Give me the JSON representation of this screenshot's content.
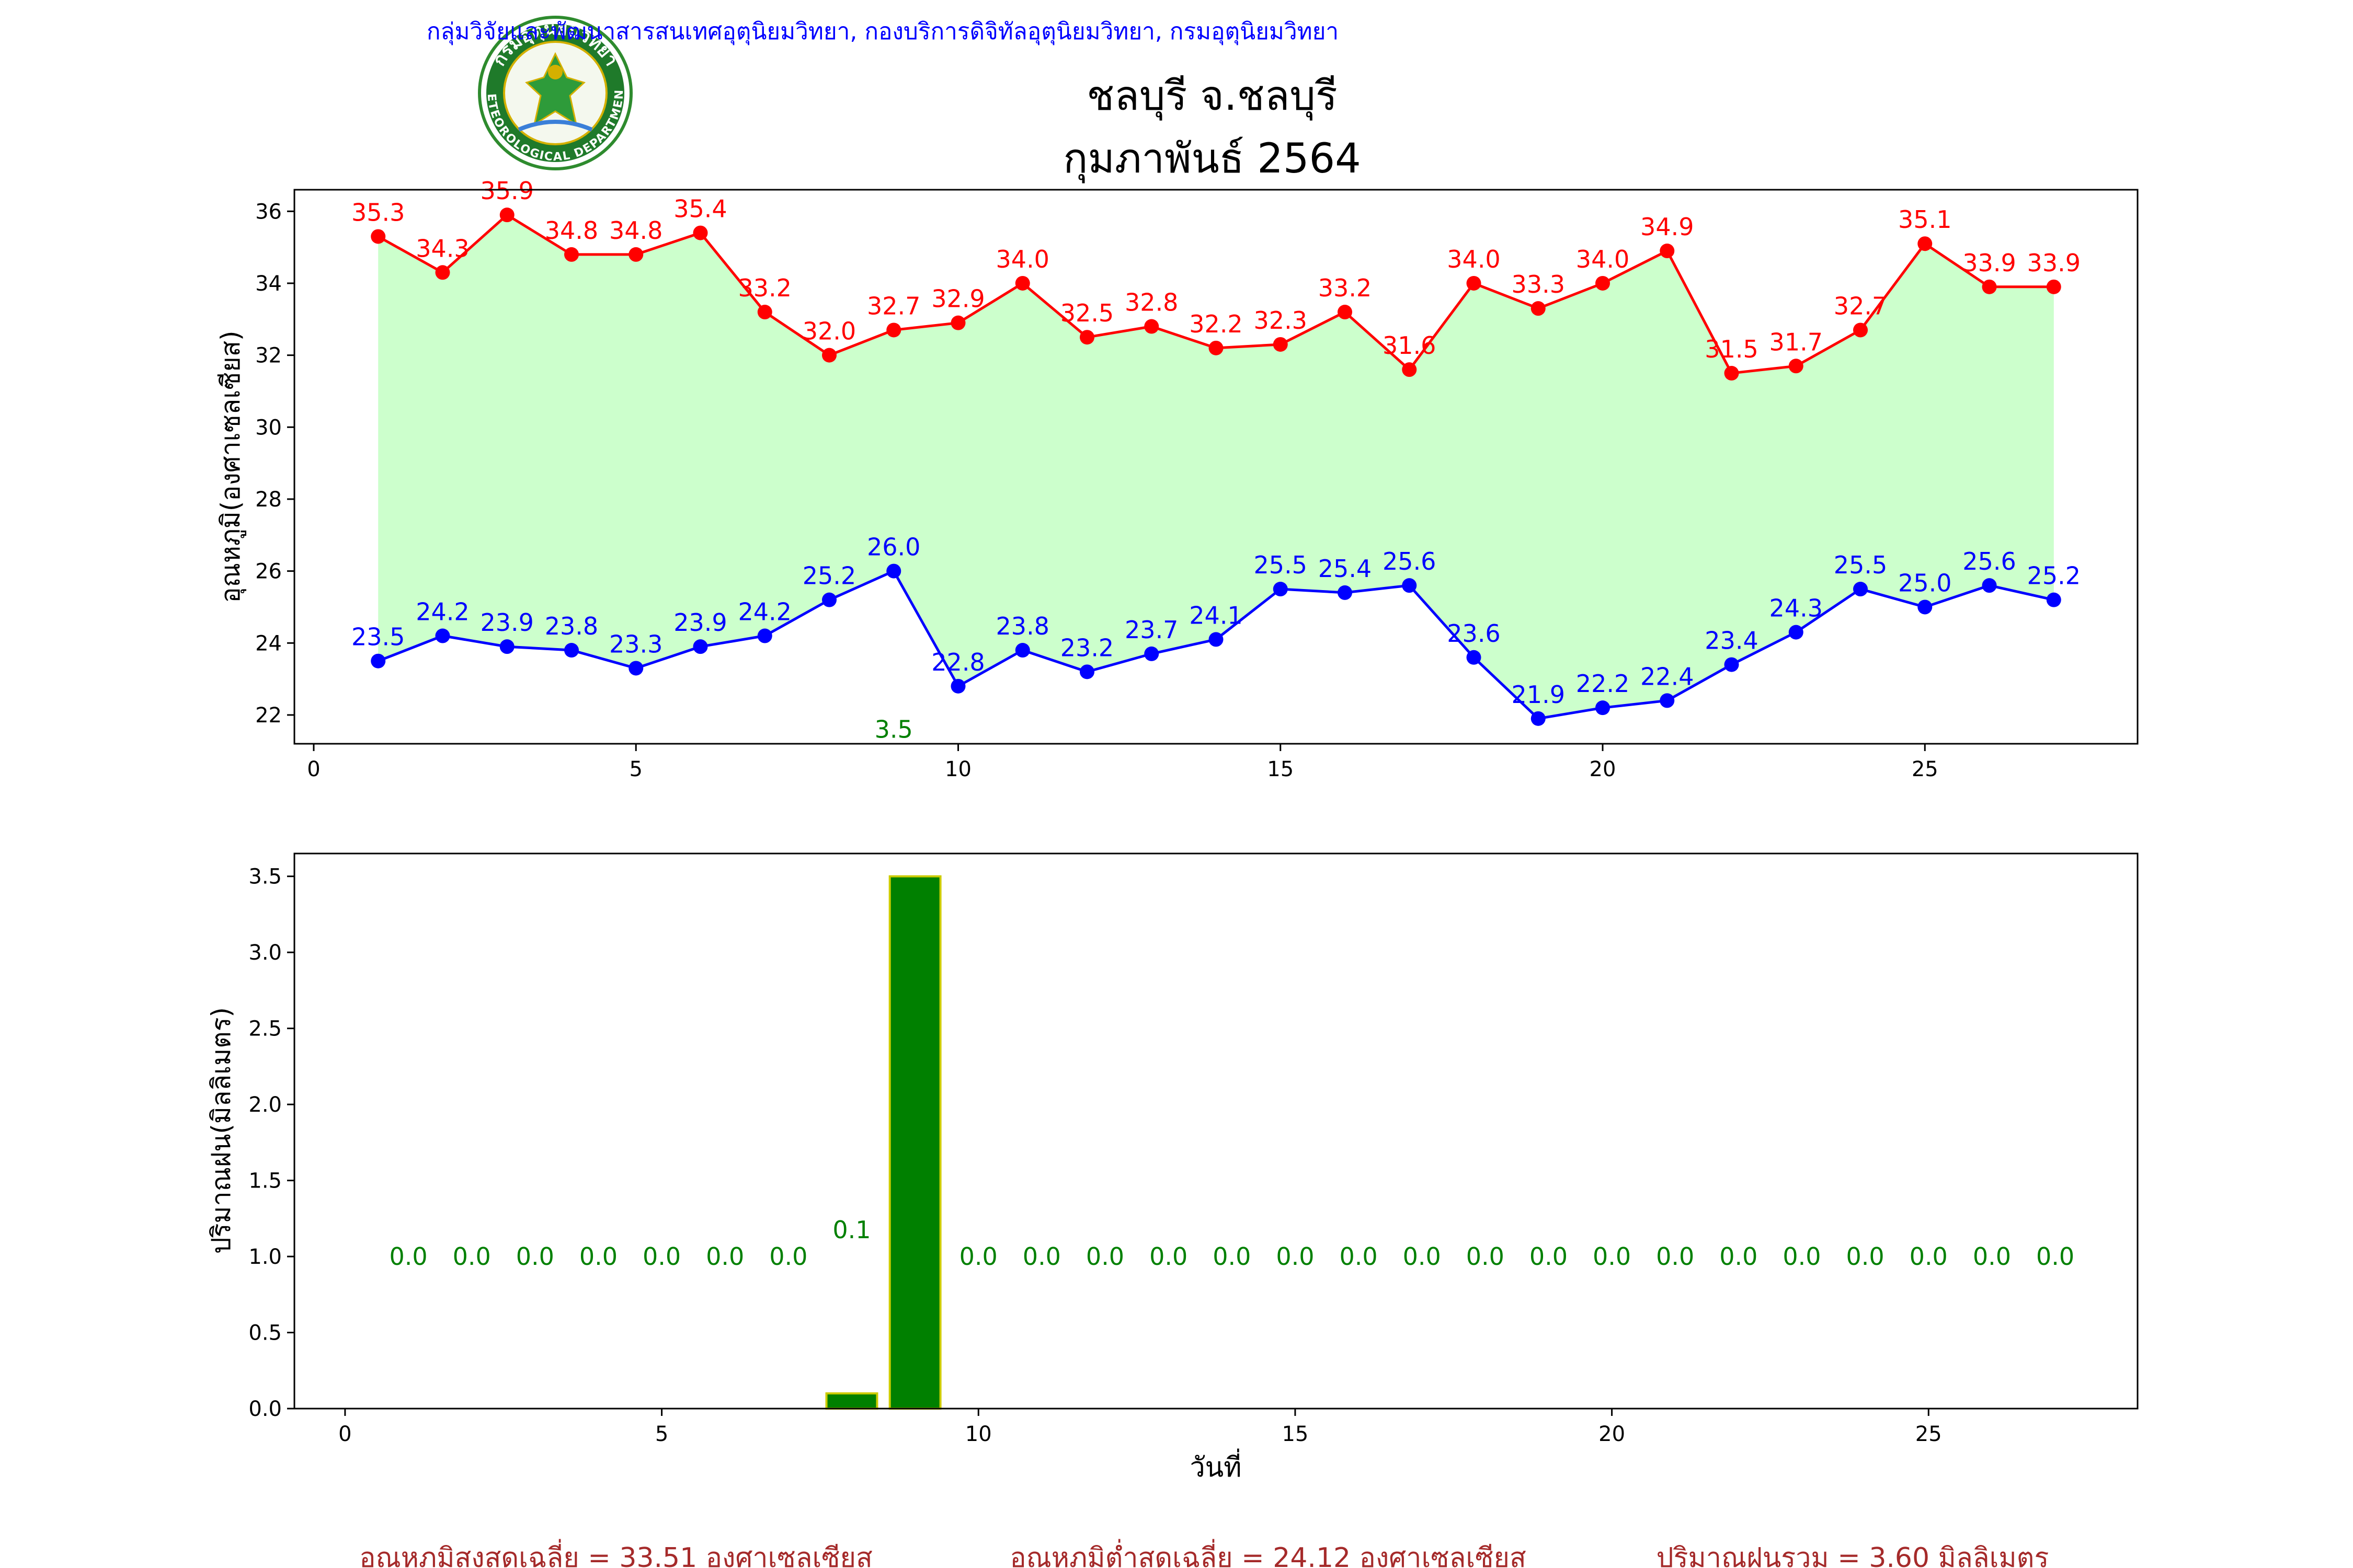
{
  "header": {
    "org_line": "กลุ่มวิจัยและพัฒนาสารสนเทศอุตุนิยมวิทยา, กองบริการดิจิทัลอุตุนิยมวิทยา, กรมอุตุนิยมวิทยา",
    "station": "ชลบุรี จ.ชลบุรี",
    "period": "กุมภาพันธ์ 2564",
    "logo_text_top": "กรมอุตุนิยมวิทยา",
    "logo_text_bottom": "METEOROLOGICAL DEPARTMENT"
  },
  "colors": {
    "org_line": "#0000ff",
    "max_temp": "#ff0000",
    "min_temp": "#0000ff",
    "band_fill": "#ccffcc",
    "rain_bar": "#008000",
    "rain_edge": "#cccc00",
    "rain_label": "#008000",
    "summary": "#a52a2a"
  },
  "chart_data": [
    {
      "type": "line",
      "ylabel": "อุณหภูมิ(องศาเซลเซียส)",
      "xlabel": "",
      "xlim": [
        -0.3,
        28.3
      ],
      "ylim": [
        21.2,
        36.6
      ],
      "xticks": [
        0,
        5,
        10,
        15,
        20,
        25
      ],
      "yticks": [
        22,
        24,
        26,
        28,
        30,
        32,
        34,
        36
      ],
      "x": [
        1,
        2,
        3,
        4,
        5,
        6,
        7,
        8,
        9,
        10,
        11,
        12,
        13,
        14,
        15,
        16,
        17,
        18,
        19,
        20,
        21,
        22,
        23,
        24,
        25,
        26,
        27
      ],
      "series": [
        {
          "name": "",
          "role": "max",
          "values": [
            35.3,
            34.3,
            35.9,
            34.8,
            34.8,
            35.4,
            33.2,
            32.0,
            32.7,
            32.9,
            34.0,
            32.5,
            32.8,
            32.2,
            32.3,
            33.2,
            31.6,
            34.0,
            33.3,
            34.0,
            34.9,
            31.5,
            31.7,
            32.7,
            35.1,
            33.9,
            33.9
          ]
        },
        {
          "name": "",
          "role": "min",
          "values": [
            23.5,
            24.2,
            23.9,
            23.8,
            23.3,
            23.9,
            24.2,
            25.2,
            26.0,
            22.8,
            23.8,
            23.2,
            23.7,
            24.1,
            25.5,
            25.4,
            25.6,
            23.6,
            21.9,
            22.2,
            22.4,
            23.4,
            24.3,
            25.5,
            25.0,
            25.6,
            25.2
          ]
        }
      ],
      "annotations": [
        {
          "x": 9,
          "y": 21.6,
          "text": "3.5"
        }
      ],
      "grid": false
    },
    {
      "type": "bar",
      "ylabel": "ปริมาณฝน(มิลลิเมตร)",
      "xlabel": "วันที่",
      "xlim": [
        -0.8,
        28.3
      ],
      "ylim": [
        0,
        3.65
      ],
      "xticks": [
        0,
        5,
        10,
        15,
        20,
        25
      ],
      "yticks": [
        "0.0",
        "0.5",
        "1.0",
        "1.5",
        "2.0",
        "2.5",
        "3.0",
        "3.5"
      ],
      "x": [
        1,
        2,
        3,
        4,
        5,
        6,
        7,
        8,
        9,
        10,
        11,
        12,
        13,
        14,
        15,
        16,
        17,
        18,
        19,
        20,
        21,
        22,
        23,
        24,
        25,
        26,
        27
      ],
      "values": [
        0.0,
        0.0,
        0.0,
        0.0,
        0.0,
        0.0,
        0.0,
        0.1,
        3.5,
        0.0,
        0.0,
        0.0,
        0.0,
        0.0,
        0.0,
        0.0,
        0.0,
        0.0,
        0.0,
        0.0,
        0.0,
        0.0,
        0.0,
        0.0,
        0.0,
        0.0,
        0.0
      ],
      "labels": [
        "0.0",
        "0.0",
        "0.0",
        "0.0",
        "0.0",
        "0.0",
        "0.0",
        "0.1",
        "",
        "0.0",
        "0.0",
        "0.0",
        "0.0",
        "0.0",
        "0.0",
        "0.0",
        "0.0",
        "0.0",
        "0.0",
        "0.0",
        "0.0",
        "0.0",
        "0.0",
        "0.0",
        "0.0",
        "0.0",
        "0.0"
      ],
      "grid": false
    }
  ],
  "summary": {
    "avg_max": "อุณหภูมิสูงสุดเฉลี่ย = 33.51 องศาเซลเซียส",
    "avg_min": "อุณหภูมิต่ำสุดเฉลี่ย = 24.12 องศาเซลเซียส",
    "rain_total": "ปริมาณฝนรวม = 3.60 มิลลิเมตร"
  }
}
